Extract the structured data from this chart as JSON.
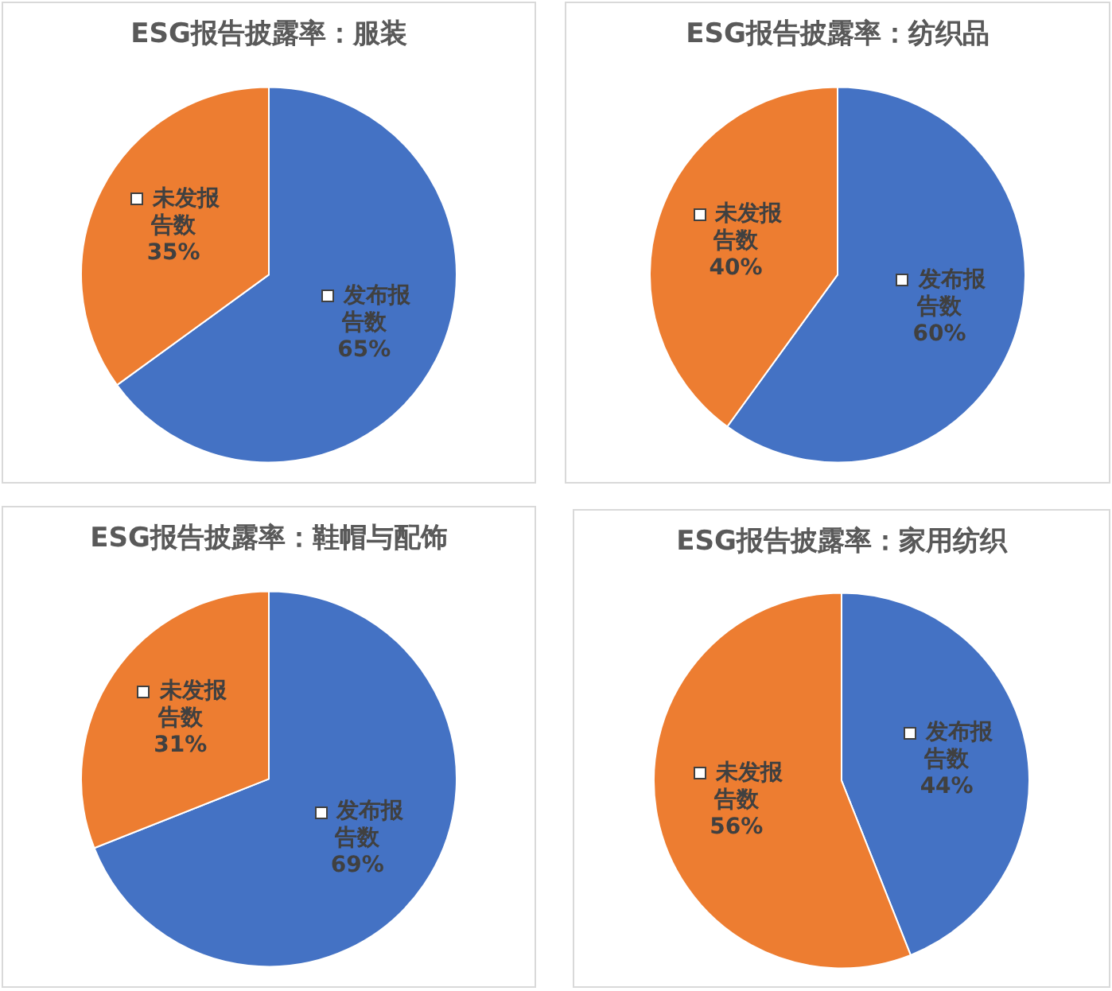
{
  "chart_data": [
    {
      "type": "pie",
      "title": "ESG报告披露率：服装",
      "categories": [
        "发布报告数",
        "未发报告数"
      ],
      "values": [
        65,
        35
      ],
      "colors": [
        "#4472c4",
        "#ed7d31"
      ],
      "value_labels": [
        "65%",
        "35%"
      ]
    },
    {
      "type": "pie",
      "title": "ESG报告披露率：纺织品",
      "categories": [
        "发布报告数",
        "未发报告数"
      ],
      "values": [
        60,
        40
      ],
      "colors": [
        "#4472c4",
        "#ed7d31"
      ],
      "value_labels": [
        "60%",
        "40%"
      ]
    },
    {
      "type": "pie",
      "title": "ESG报告披露率：鞋帽与配饰",
      "categories": [
        "发布报告数",
        "未发报告数"
      ],
      "values": [
        69,
        31
      ],
      "colors": [
        "#4472c4",
        "#ed7d31"
      ],
      "value_labels": [
        "69%",
        "31%"
      ]
    },
    {
      "type": "pie",
      "title": "ESG报告披露率：家用纺织",
      "categories": [
        "发布报告数",
        "未发报告数"
      ],
      "values": [
        44,
        56
      ],
      "colors": [
        "#4472c4",
        "#ed7d31"
      ],
      "value_labels": [
        "44%",
        "56%"
      ]
    }
  ]
}
